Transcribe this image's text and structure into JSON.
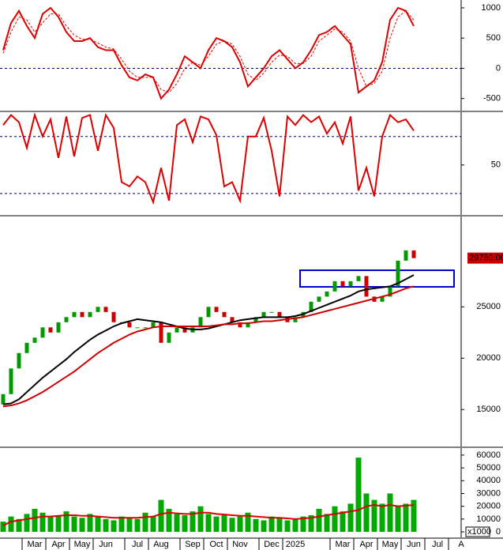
{
  "chart_data": [
    {
      "type": "line",
      "ylim": [
        -700,
        1130
      ],
      "yticks": [
        1000,
        500,
        0,
        -500
      ],
      "hlines": [
        0
      ],
      "series": [
        {
          "color": "#dd0000",
          "width": 2,
          "dash": false,
          "values": [
            300,
            750,
            950,
            700,
            500,
            900,
            1000,
            850,
            600,
            450,
            450,
            500,
            350,
            300,
            300,
            50,
            -150,
            -200,
            -100,
            -150,
            -500,
            -350,
            -100,
            200,
            100,
            0,
            300,
            500,
            450,
            350,
            100,
            -300,
            -150,
            0,
            200,
            300,
            150,
            0,
            100,
            300,
            550,
            600,
            700,
            550,
            400,
            -400,
            -300,
            -200,
            100,
            800,
            1000,
            950,
            700,
            null,
            null,
            null,
            null,
            null,
            null
          ]
        },
        {
          "color": "#dd0000",
          "width": 1,
          "dash": true,
          "values": [
            250,
            600,
            850,
            800,
            600,
            750,
            900,
            900,
            700,
            550,
            480,
            480,
            420,
            350,
            320,
            150,
            -50,
            -150,
            -150,
            -150,
            -350,
            -400,
            -250,
            0,
            100,
            50,
            200,
            400,
            450,
            400,
            200,
            -100,
            -200,
            -80,
            100,
            220,
            200,
            80,
            80,
            200,
            450,
            550,
            650,
            600,
            450,
            0,
            -300,
            -250,
            -50,
            500,
            850,
            950,
            800,
            null,
            null,
            null,
            null,
            null,
            null
          ]
        }
      ]
    },
    {
      "type": "line",
      "ylim": [
        15,
        87
      ],
      "yticks": [
        50
      ],
      "hlines": [
        70,
        30
      ],
      "series": [
        {
          "color": "#dd0000",
          "width": 2,
          "dash": false,
          "values": [
            78,
            85,
            80,
            62,
            85,
            70,
            82,
            55,
            84,
            56,
            83,
            85,
            60,
            85,
            76,
            38,
            35,
            42,
            38,
            24,
            48,
            25,
            78,
            82,
            66,
            84,
            82,
            71,
            35,
            38,
            25,
            70,
            70,
            83,
            60,
            28,
            84,
            78,
            85,
            80,
            84,
            72,
            80,
            65,
            84,
            32,
            48,
            28,
            70,
            85,
            80,
            82,
            74,
            null,
            null,
            null,
            null,
            null,
            null
          ]
        }
      ]
    },
    {
      "type": "candlestick",
      "ylim": [
        11400,
        33800
      ],
      "yticks": [
        25000,
        20000,
        15000
      ],
      "up_color": "#009900",
      "down_color": "#cc0000",
      "open": [
        15500,
        16500,
        19000,
        20500,
        21500,
        22000,
        23000,
        22500,
        23500,
        24000,
        24500,
        24000,
        24500,
        25000,
        24500,
        23500,
        23500,
        23000,
        23000,
        23000,
        23500,
        21500,
        22500,
        23000,
        22500,
        23000,
        24000,
        25000,
        24500,
        24000,
        23500,
        23000,
        23500,
        24000,
        24500,
        24500,
        24000,
        23500,
        24000,
        24500,
        25500,
        26000,
        26500,
        27500,
        27000,
        27500,
        28000,
        26000,
        25500,
        26000,
        27000,
        29500,
        30500,
        null,
        null,
        null,
        null,
        null,
        null
      ],
      "close": [
        16500,
        19000,
        20500,
        21500,
        22000,
        23000,
        22500,
        23500,
        24000,
        24500,
        24000,
        24500,
        25000,
        24500,
        23500,
        23500,
        23000,
        23000,
        23000,
        23500,
        21500,
        22500,
        23000,
        22500,
        23000,
        24000,
        25000,
        24500,
        24000,
        23500,
        23000,
        23500,
        24000,
        24500,
        24500,
        24000,
        23500,
        24000,
        24500,
        25500,
        26000,
        26500,
        27500,
        27000,
        27500,
        28000,
        26000,
        25500,
        26000,
        27000,
        29500,
        30500,
        29750,
        null,
        null,
        null,
        null,
        null,
        null
      ],
      "last_label": "29750.00",
      "series": [
        {
          "color": "#000000",
          "values": [
            15500,
            15600,
            16000,
            16700,
            17400,
            18100,
            18700,
            19300,
            19900,
            20600,
            21200,
            21800,
            22300,
            22700,
            23100,
            23400,
            23600,
            23800,
            23700,
            23600,
            23500,
            23300,
            23100,
            22900,
            22800,
            22800,
            22900,
            23100,
            23300,
            23500,
            23700,
            23800,
            23900,
            24000,
            24000,
            24000,
            24000,
            24100,
            24300,
            24600,
            24900,
            25200,
            25500,
            25800,
            26100,
            26500,
            26700,
            26800,
            26900,
            27000,
            27300,
            27700,
            28100,
            null,
            null,
            null,
            null,
            null,
            null
          ]
        },
        {
          "color": "#cc0000",
          "values": [
            15300,
            15400,
            15600,
            15900,
            16300,
            16700,
            17200,
            17700,
            18200,
            18700,
            19300,
            19900,
            20500,
            21000,
            21500,
            21900,
            22300,
            22600,
            22800,
            23000,
            23100,
            23100,
            23100,
            23100,
            23100,
            23100,
            23100,
            23200,
            23300,
            23300,
            23400,
            23400,
            23500,
            23600,
            23600,
            23700,
            23800,
            23900,
            24000,
            24200,
            24400,
            24600,
            24800,
            25000,
            25200,
            25400,
            25600,
            25800,
            26000,
            26200,
            26500,
            26800,
            27000,
            null,
            null,
            null,
            null,
            null,
            null
          ]
        }
      ]
    },
    {
      "type": "volume",
      "ylim": [
        -4300,
        65500
      ],
      "yticks": [
        60000,
        50000,
        40000,
        30000,
        20000,
        10000,
        0
      ],
      "unit": "x1000",
      "color": "#00aa00",
      "categories": [
        null,
        null,
        null,
        null,
        "Mar",
        null,
        null,
        "Apr",
        null,
        null,
        "May",
        null,
        null,
        "Jun",
        null,
        null,
        null,
        "Jul",
        null,
        null,
        "Aug",
        null,
        null,
        null,
        "Sep",
        null,
        null,
        "Oct",
        null,
        null,
        "Nov",
        null,
        null,
        null,
        "Dec",
        null,
        null,
        "2025",
        null,
        null,
        null,
        null,
        null,
        "Mar",
        null,
        null,
        "Apr",
        null,
        null,
        "May",
        null,
        null,
        "Jun",
        null,
        null,
        "Jul",
        null,
        null,
        "A"
      ],
      "values": [
        8000,
        12000,
        10000,
        14000,
        18000,
        15000,
        12000,
        13000,
        16000,
        12000,
        11000,
        14000,
        12000,
        10000,
        9000,
        12000,
        11000,
        10000,
        15000,
        12000,
        25000,
        18000,
        14000,
        13000,
        16000,
        20000,
        14000,
        12000,
        13000,
        11000,
        12000,
        15000,
        10000,
        9000,
        12000,
        11000,
        9000,
        10000,
        12000,
        13000,
        18000,
        14000,
        20000,
        16000,
        22000,
        58000,
        30000,
        25000,
        22000,
        30000,
        20000,
        22000,
        25000,
        null,
        null,
        null,
        null,
        null,
        null
      ],
      "series": [
        {
          "color": "#dd0000",
          "values": [
            5000,
            8000,
            9000,
            10000,
            11000,
            12000,
            12000,
            12500,
            13000,
            13000,
            12500,
            12500,
            12000,
            11500,
            11000,
            11000,
            11000,
            11000,
            11500,
            12000,
            14000,
            15000,
            14500,
            14000,
            14000,
            15000,
            15000,
            14000,
            13500,
            13000,
            12500,
            12500,
            12000,
            11500,
            11000,
            11000,
            10500,
            10000,
            10500,
            11000,
            12000,
            13000,
            14000,
            15000,
            16000,
            17000,
            20000,
            21000,
            20000,
            21000,
            20000,
            20500,
            21000,
            null,
            null,
            null,
            null,
            null,
            null
          ]
        }
      ]
    }
  ]
}
